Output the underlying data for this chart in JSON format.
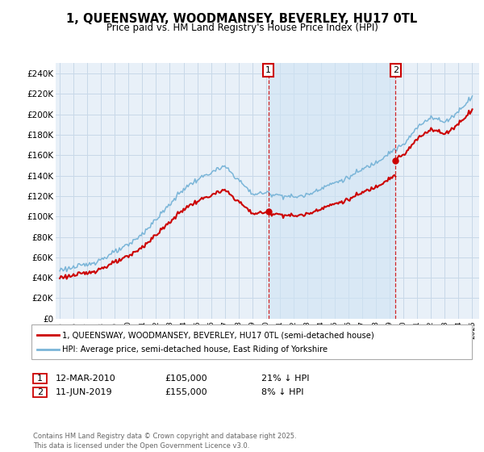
{
  "title1": "1, QUEENSWAY, WOODMANSEY, BEVERLEY, HU17 0TL",
  "title2": "Price paid vs. HM Land Registry's House Price Index (HPI)",
  "background_color": "#ffffff",
  "plot_bg_color": "#e8f0f8",
  "plot_bg_highlight": "#d0e4f4",
  "grid_color": "#c8d8e8",
  "hpi_color": "#7ab5d8",
  "price_color": "#cc0000",
  "sale1_date": "12-MAR-2010",
  "sale1_price": 105000,
  "sale1_label": "21% ↓ HPI",
  "sale2_date": "11-JUN-2019",
  "sale2_price": 155000,
  "sale2_label": "8% ↓ HPI",
  "legend_label1": "1, QUEENSWAY, WOODMANSEY, BEVERLEY, HU17 0TL (semi-detached house)",
  "legend_label2": "HPI: Average price, semi-detached house, East Riding of Yorkshire",
  "footer": "Contains HM Land Registry data © Crown copyright and database right 2025.\nThis data is licensed under the Open Government Licence v3.0.",
  "ylim": [
    0,
    250000
  ],
  "yticks": [
    0,
    20000,
    40000,
    60000,
    80000,
    100000,
    120000,
    140000,
    160000,
    180000,
    200000,
    220000,
    240000
  ],
  "xlim_start": 1994.7,
  "xlim_end": 2025.5
}
